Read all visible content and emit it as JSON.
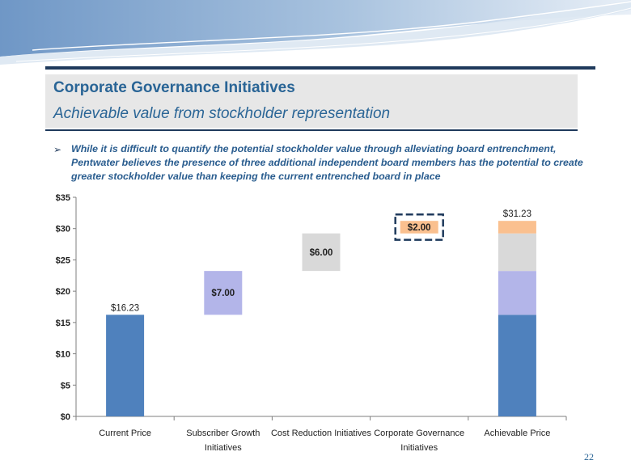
{
  "slide": {
    "title": "Corporate Governance Initiatives",
    "subtitle": "Achievable value from stockholder representation",
    "bullet_marker": "➢",
    "bullet_text": "While it is difficult to quantify the potential stockholder value through alleviating board entrenchment, Pentwater believes the presence of three additional independent board members has the potential to create greater stockholder value than keeping the current entrenched board in place",
    "page_number": "22"
  },
  "chart_data": {
    "type": "bar",
    "subtype": "waterfall",
    "categories": [
      [
        "Current Price"
      ],
      [
        "Subscriber Growth",
        "Initiatives"
      ],
      [
        "Cost Reduction Initiatives"
      ],
      [
        "Corporate Governance",
        "Initiatives"
      ],
      [
        "Achievable Price"
      ]
    ],
    "steps": [
      {
        "name": "Current Price",
        "value": 16.23,
        "label": "$16.23",
        "color": "#4f81bd"
      },
      {
        "name": "Subscriber Growth Initiatives",
        "value": 7.0,
        "label": "$7.00",
        "color": "#b3b5e9"
      },
      {
        "name": "Cost Reduction Initiatives",
        "value": 6.0,
        "label": "$6.00",
        "color": "#d9d9d9"
      },
      {
        "name": "Corporate Governance Initiatives",
        "value": 2.0,
        "label": "$2.00",
        "color": "#fac08f",
        "highlight": true
      }
    ],
    "total": {
      "name": "Achievable Price",
      "value": 31.23,
      "label": "$31.23"
    },
    "ylim": [
      0,
      35
    ],
    "yticks": [
      0,
      5,
      10,
      15,
      20,
      25,
      30,
      35
    ],
    "ytick_labels": [
      "$0",
      "$5",
      "$10",
      "$15",
      "$20",
      "$25",
      "$30",
      "$35"
    ],
    "title": "",
    "xlabel": "",
    "ylabel": "",
    "highlight_color": "#1f3a5c"
  }
}
